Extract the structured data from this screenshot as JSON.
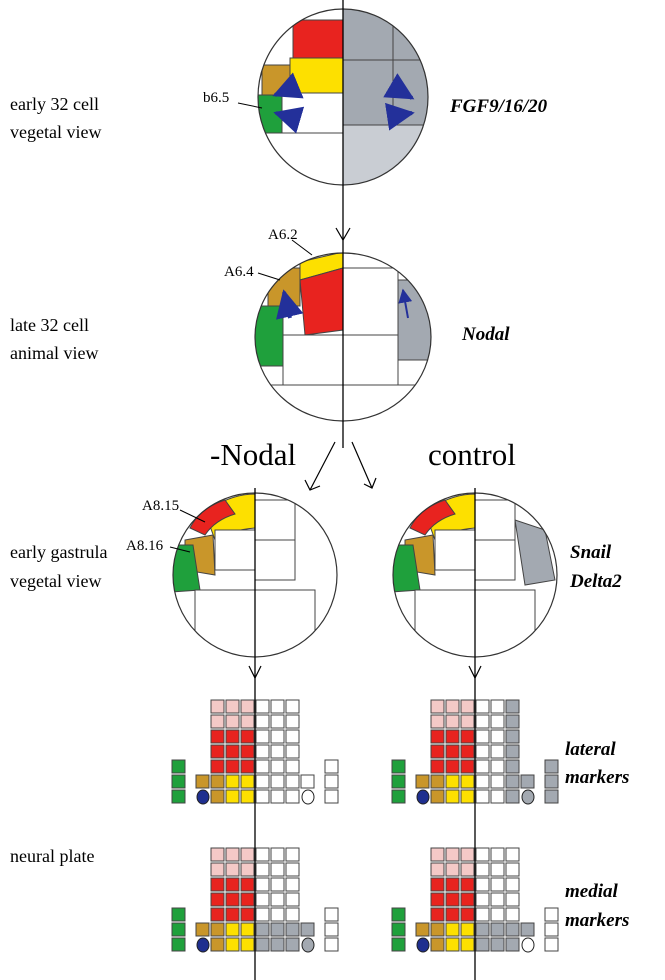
{
  "stages": [
    {
      "lines": [
        "early 32 cell",
        "vegetal view"
      ]
    },
    {
      "lines": [
        "late 32 cell",
        "animal view"
      ]
    },
    {
      "lines": [
        "early gastrula",
        "vegetal view"
      ]
    },
    {
      "lines": [
        "neural plate"
      ]
    }
  ],
  "genes": [
    {
      "lines": [
        "FGF9/16/20"
      ]
    },
    {
      "lines": [
        "Nodal"
      ]
    },
    {
      "lines": [
        "Snail",
        "Delta2"
      ]
    },
    {
      "lines": [
        "lateral",
        "markers"
      ]
    },
    {
      "lines": [
        "medial",
        "markers"
      ]
    }
  ],
  "cell_labels": [
    "b6.5",
    "A6.2",
    "A6.4",
    "A8.15",
    "A8.16"
  ],
  "conditions": [
    "-Nodal",
    "control"
  ]
}
